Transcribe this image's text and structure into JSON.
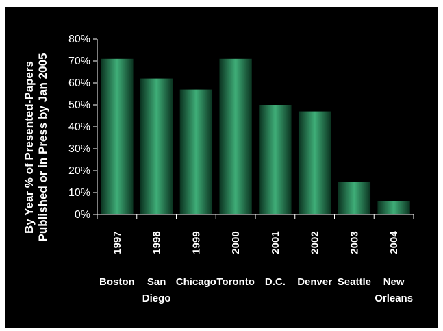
{
  "chart_data": {
    "type": "bar",
    "categories": [
      "1997",
      "1998",
      "1999",
      "2000",
      "2001",
      "2002",
      "2003",
      "2004"
    ],
    "category_sublabels": [
      [
        "Boston"
      ],
      [
        "San",
        "Diego"
      ],
      [
        "Chicago"
      ],
      [
        "Toronto"
      ],
      [
        "D.C."
      ],
      [
        "Denver"
      ],
      [
        "Seattle"
      ],
      [
        "New",
        "Orleans"
      ]
    ],
    "values": [
      0.71,
      0.62,
      0.57,
      0.71,
      0.5,
      0.47,
      0.15,
      0.06
    ],
    "ylabel_lines": [
      "By Year % of Presented-Papers",
      "Published or in Press by Jan 2005"
    ],
    "yticks": [
      "0%",
      "10%",
      "20%",
      "30%",
      "40%",
      "50%",
      "60%",
      "70%",
      "80%"
    ],
    "ylim": [
      0,
      0.8
    ],
    "grid": false,
    "colors": {
      "background": "#000000",
      "bar_center": "#3fae78",
      "bar_edge": "#0b3320",
      "axis": "#ffffff",
      "text": "#ffffff"
    }
  }
}
